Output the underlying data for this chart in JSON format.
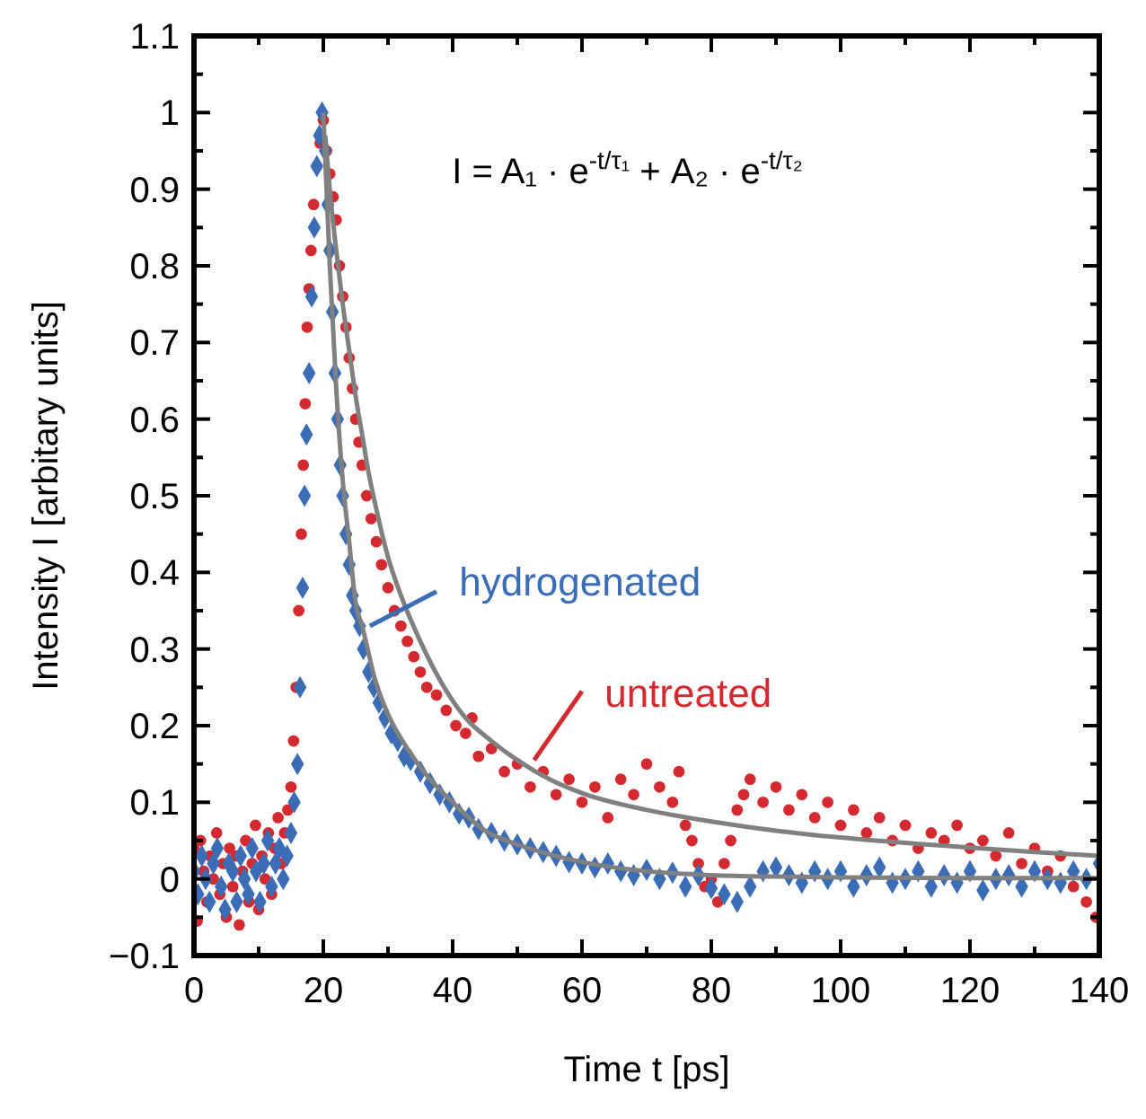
{
  "chart_data": {
    "type": "scatter",
    "xlabel": "Time t [ps]",
    "ylabel": "Intensity I [arbitary units]",
    "xlim": [
      0,
      140
    ],
    "ylim": [
      -0.1,
      1.1
    ],
    "xticks": [
      0,
      {
        "value": 10,
        "label": null
      },
      20,
      {
        "value": 30,
        "label": null
      },
      40,
      {
        "value": 50,
        "label": null
      },
      60,
      {
        "value": 70,
        "label": null
      },
      80,
      {
        "value": 90,
        "label": null
      },
      100,
      {
        "value": 110,
        "label": null
      },
      120,
      {
        "value": 130,
        "label": null
      },
      140
    ],
    "yticks": [
      {
        "value": -0.1,
        "label": "−0.1"
      },
      {
        "value": -0.05,
        "label": null
      },
      0,
      {
        "value": 0.05,
        "label": null
      },
      0.1,
      {
        "value": 0.15,
        "label": null
      },
      0.2,
      {
        "value": 0.25,
        "label": null
      },
      0.3,
      {
        "value": 0.35,
        "label": null
      },
      0.4,
      {
        "value": 0.45,
        "label": null
      },
      0.5,
      {
        "value": 0.55,
        "label": null
      },
      0.6,
      {
        "value": 0.65,
        "label": null
      },
      0.7,
      {
        "value": 0.75,
        "label": null
      },
      0.8,
      {
        "value": 0.85,
        "label": null
      },
      0.9,
      {
        "value": 0.95,
        "label": null
      },
      1,
      {
        "value": 1.05,
        "label": null
      },
      1.1
    ],
    "grid": false,
    "legend": "center",
    "annotations": [
      "I = A₁ · e$^{-t/τ₁}$ + A₂ · e$^{-t/τ₂}$"
    ],
    "series": [
      {
        "name": "untreated",
        "color": "#d42a2f",
        "marker": "circle",
        "x": [
          0,
          0.5,
          1,
          1.5,
          2,
          2.5,
          3,
          3.5,
          4,
          4.5,
          5,
          5.5,
          6,
          6.5,
          7,
          7.5,
          8,
          8.5,
          9,
          9.5,
          10,
          10.5,
          11,
          11.5,
          12,
          12.5,
          13,
          13.5,
          14,
          14.5,
          15,
          15.4,
          15.8,
          16.2,
          16.6,
          16.9,
          17.2,
          17.5,
          17.8,
          18.1,
          18.5,
          19,
          19.5,
          20,
          20.5,
          21,
          21.5,
          22,
          22.5,
          23,
          23.5,
          24,
          24.5,
          25,
          25.5,
          26,
          26.7,
          27.4,
          28.2,
          29,
          30,
          31,
          32,
          33,
          34,
          35,
          36,
          37.5,
          39,
          40.5,
          42,
          43,
          44,
          46,
          48,
          50,
          52,
          54,
          56,
          58,
          60,
          62,
          64,
          66,
          68,
          70,
          72,
          74,
          75,
          76,
          77,
          78,
          79,
          80,
          81,
          82,
          83,
          84,
          85,
          86,
          88,
          90,
          92,
          94,
          96,
          98,
          100,
          102,
          104,
          106,
          108,
          110,
          112,
          114,
          116,
          118,
          120,
          122,
          124,
          126,
          128,
          130,
          132,
          134,
          136,
          138,
          139.5
        ],
        "values": [
          0.04,
          -0.055,
          0.05,
          0.01,
          -0.03,
          0.03,
          0,
          0.06,
          -0.02,
          0.02,
          -0.05,
          0.04,
          -0.01,
          0.03,
          -0.06,
          0.01,
          0.05,
          -0.03,
          0.02,
          0.07,
          -0.04,
          0.03,
          0,
          0.06,
          -0.02,
          0.04,
          0.08,
          0.02,
          0.06,
          0.09,
          0.12,
          0.18,
          0.25,
          0.35,
          0.45,
          0.54,
          0.62,
          0.72,
          0.77,
          0.82,
          0.88,
          0.93,
          0.96,
          0.99,
          0.95,
          0.92,
          0.89,
          0.86,
          0.8,
          0.76,
          0.72,
          0.68,
          0.64,
          0.6,
          0.57,
          0.54,
          0.5,
          0.47,
          0.44,
          0.41,
          0.38,
          0.35,
          0.33,
          0.31,
          0.29,
          0.27,
          0.25,
          0.24,
          0.22,
          0.2,
          0.19,
          0.21,
          0.16,
          0.17,
          0.14,
          0.15,
          0.12,
          0.14,
          0.11,
          0.13,
          0.1,
          0.12,
          0.08,
          0.13,
          0.11,
          0.15,
          0.12,
          0.1,
          0.14,
          0.07,
          0.05,
          0.02,
          -0.01,
          0,
          -0.03,
          0.02,
          0.05,
          0.09,
          0.11,
          0.13,
          0.1,
          0.12,
          0.09,
          0.11,
          0.08,
          0.1,
          0.07,
          0.09,
          0.06,
          0.08,
          0.05,
          0.07,
          0.04,
          0.06,
          0.05,
          0.07,
          0.04,
          0.05,
          0.03,
          0.06,
          0.02,
          0.04,
          0.01,
          0.03,
          -0.01,
          -0.03,
          -0.05
        ]
      },
      {
        "name": "hydrogenated",
        "color": "#3a6db5",
        "marker": "diamond",
        "x": [
          0,
          0.6,
          1.2,
          1.8,
          2.4,
          3,
          3.6,
          4.2,
          4.8,
          5.4,
          6,
          6.6,
          7.2,
          7.8,
          8.4,
          9,
          9.6,
          10.2,
          10.8,
          11.4,
          12,
          12.6,
          13.2,
          13.8,
          14.4,
          15,
          15.5,
          16,
          16.4,
          16.8,
          17.1,
          17.4,
          17.8,
          18.2,
          18.6,
          19,
          19.4,
          19.8,
          20.3,
          20.7,
          21,
          21.4,
          21.8,
          22.2,
          22.6,
          23,
          23.5,
          24,
          24.5,
          25,
          25.6,
          26.2,
          27,
          27.8,
          28.6,
          29.5,
          30.5,
          31.5,
          32.5,
          33.5,
          35,
          36.5,
          38,
          39.5,
          41,
          42.5,
          44,
          46,
          48,
          50,
          52,
          54,
          56,
          58,
          60,
          62,
          64,
          66,
          68,
          70,
          72,
          74,
          76,
          78,
          80,
          82,
          84,
          86,
          88,
          90,
          92,
          94,
          96,
          98,
          100,
          102,
          104,
          106,
          108,
          110,
          112,
          114,
          116,
          118,
          120,
          122,
          124,
          126,
          128,
          130,
          132,
          134,
          136,
          138,
          140
        ],
        "values": [
          0.01,
          -0.02,
          0.03,
          0,
          -0.03,
          0.02,
          0.04,
          -0.01,
          -0.04,
          0.02,
          0.01,
          -0.03,
          0.03,
          0,
          -0.02,
          0.04,
          0.01,
          -0.03,
          0.02,
          0.05,
          -0.01,
          0.02,
          0.04,
          0,
          0.03,
          0.06,
          0.1,
          0.15,
          0.25,
          0.38,
          0.5,
          0.58,
          0.66,
          0.76,
          0.85,
          0.93,
          0.97,
          1,
          0.95,
          0.88,
          0.82,
          0.74,
          0.66,
          0.6,
          0.54,
          0.5,
          0.45,
          0.41,
          0.37,
          0.35,
          0.33,
          0.3,
          0.27,
          0.25,
          0.23,
          0.21,
          0.19,
          0.18,
          0.16,
          0.155,
          0.14,
          0.125,
          0.11,
          0.1,
          0.085,
          0.08,
          0.065,
          0.06,
          0.05,
          0.045,
          0.04,
          0.035,
          0.03,
          0.022,
          0.02,
          0.015,
          0.02,
          0.01,
          0.005,
          0.012,
          0,
          0.008,
          -0.01,
          0.005,
          -0.012,
          -0.02,
          -0.03,
          -0.01,
          0.01,
          0.015,
          0.005,
          -0.005,
          0.01,
          0,
          0.01,
          -0.01,
          0.005,
          0.015,
          -0.005,
          0,
          0.01,
          -0.01,
          0.005,
          -0.005,
          0.01,
          -0.015,
          0,
          0.005,
          -0.01,
          0.01,
          0,
          -0.005,
          0.01,
          0,
          0.02
        ]
      },
      {
        "type": "line",
        "color": "#808080",
        "x": [
          20.3,
          21,
          22,
          23,
          24,
          25,
          26,
          27,
          28,
          30,
          32,
          35,
          38,
          42,
          46,
          50,
          55,
          60,
          70,
          80,
          90,
          100,
          110,
          120,
          130,
          140
        ],
        "values": [
          0.97,
          0.9,
          0.82,
          0.75,
          0.69,
          0.63,
          0.58,
          0.53,
          0.49,
          0.42,
          0.37,
          0.31,
          0.26,
          0.21,
          0.18,
          0.155,
          0.13,
          0.112,
          0.09,
          0.075,
          0.063,
          0.054,
          0.047,
          0.041,
          0.035,
          0.03
        ]
      },
      {
        "type": "line",
        "color": "#808080",
        "x": [
          20,
          21,
          22,
          23,
          24,
          25,
          26,
          28,
          30,
          33,
          36,
          40,
          45,
          50,
          55,
          60,
          70,
          80,
          90,
          100,
          120,
          140
        ],
        "values": [
          1,
          0.8,
          0.64,
          0.52,
          0.44,
          0.36,
          0.33,
          0.26,
          0.215,
          0.17,
          0.135,
          0.1,
          0.063,
          0.045,
          0.032,
          0.022,
          0.01,
          0.005,
          0.003,
          0.002,
          0.001,
          0.001
        ]
      }
    ]
  }
}
